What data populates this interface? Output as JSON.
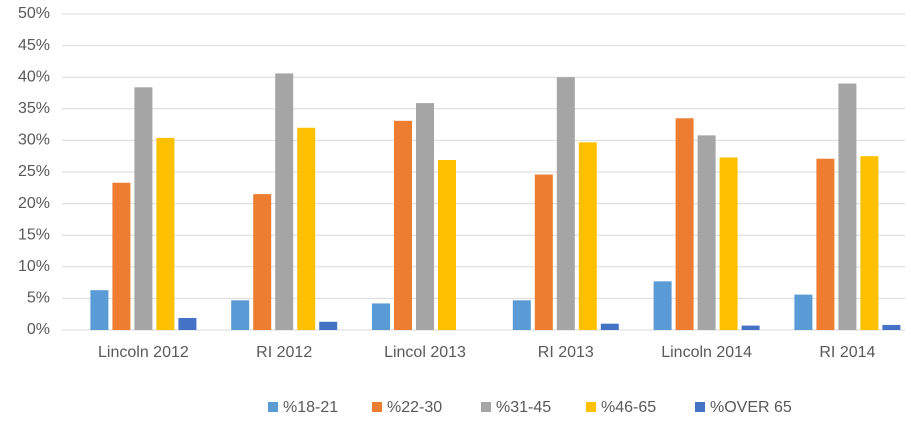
{
  "chart_data": {
    "type": "bar",
    "categories": [
      "Lincoln 2012",
      "RI 2012",
      "Lincol 2013",
      "RI 2013",
      "Lincoln 2014",
      "RI 2014"
    ],
    "series": [
      {
        "name": "%18-21",
        "color": "#5b9bd5",
        "values": [
          6.3,
          4.7,
          4.2,
          4.7,
          7.7,
          5.6
        ]
      },
      {
        "name": "%22-30",
        "color": "#ed7d31",
        "values": [
          23.3,
          21.5,
          33.1,
          24.6,
          33.5,
          27.1
        ]
      },
      {
        "name": "%31-45",
        "color": "#a5a5a5",
        "values": [
          38.4,
          40.6,
          35.9,
          40.0,
          30.8,
          39.0
        ]
      },
      {
        "name": "%46-65",
        "color": "#ffc000",
        "values": [
          30.4,
          32.0,
          26.9,
          29.7,
          27.3,
          27.5
        ]
      },
      {
        "name": "%OVER 65",
        "color": "#4472c4",
        "values": [
          1.9,
          1.3,
          0,
          1.0,
          0.7,
          0.8
        ]
      }
    ],
    "ylim": [
      0,
      50
    ],
    "yticks": [
      {
        "value": 0,
        "label": "0%"
      },
      {
        "value": 5,
        "label": "5%"
      },
      {
        "value": 10,
        "label": "10%"
      },
      {
        "value": 15,
        "label": "15%"
      },
      {
        "value": 20,
        "label": "20%"
      },
      {
        "value": 25,
        "label": "25%"
      },
      {
        "value": 30,
        "label": "30%"
      },
      {
        "value": 35,
        "label": "35%"
      },
      {
        "value": 40,
        "label": "40%"
      },
      {
        "value": 45,
        "label": "45%"
      },
      {
        "value": 50,
        "label": "50%"
      }
    ],
    "grid": true,
    "legend": "bottom"
  }
}
